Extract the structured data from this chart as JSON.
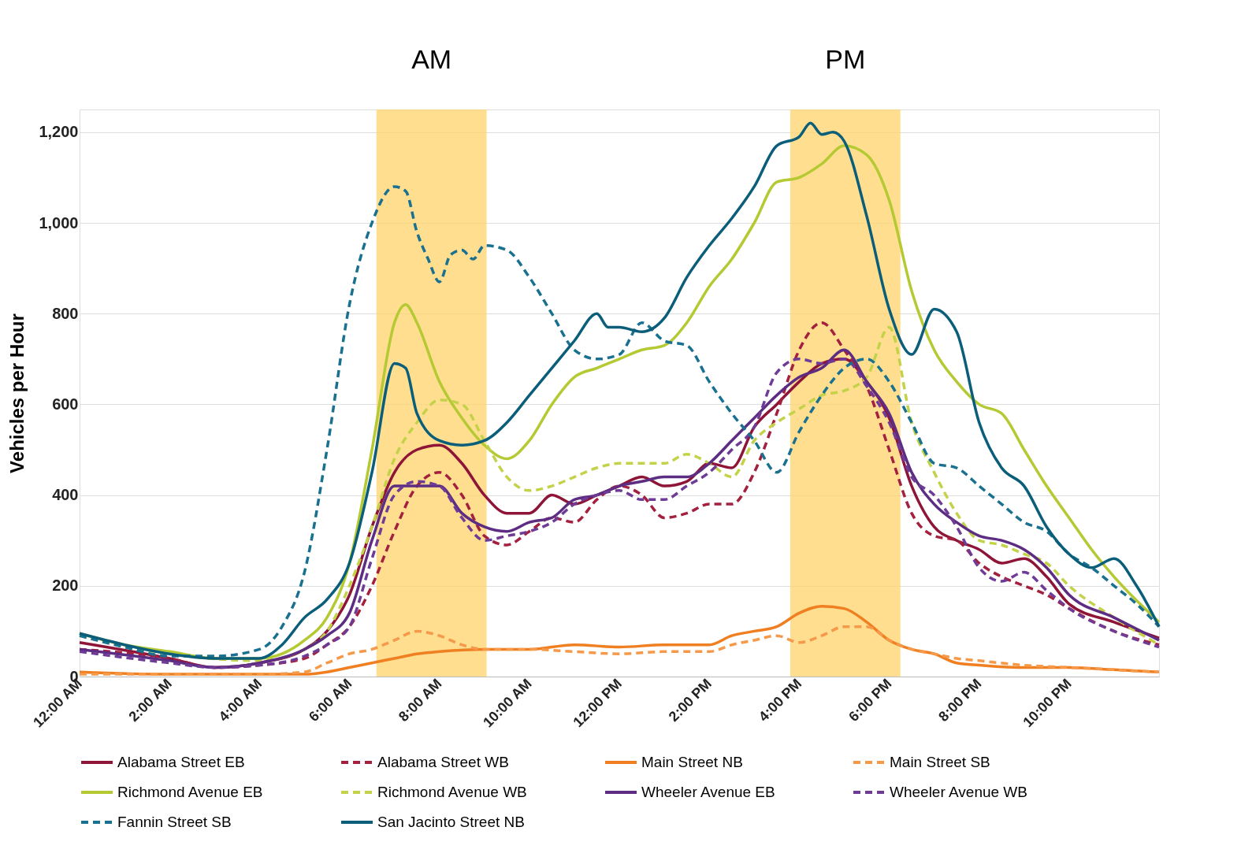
{
  "chart_data": {
    "type": "line",
    "ylabel": "Vehicles per Hour",
    "xlim": [
      0,
      24
    ],
    "ylim": [
      0,
      1250
    ],
    "xticks": [
      {
        "value": 0,
        "label": "12:00 AM"
      },
      {
        "value": 2,
        "label": "2:00 AM"
      },
      {
        "value": 4,
        "label": "4:00 AM"
      },
      {
        "value": 6,
        "label": "6:00 AM"
      },
      {
        "value": 8,
        "label": "8:00 AM"
      },
      {
        "value": 10,
        "label": "10:00 AM"
      },
      {
        "value": 12,
        "label": "12:00 PM"
      },
      {
        "value": 14,
        "label": "2:00 PM"
      },
      {
        "value": 16,
        "label": "4:00 PM"
      },
      {
        "value": 18,
        "label": "6:00 PM"
      },
      {
        "value": 20,
        "label": "8:00 PM"
      },
      {
        "value": 22,
        "label": "10:00 PM"
      }
    ],
    "yticks": [
      0,
      200,
      400,
      600,
      800,
      {
        "value": 1000,
        "label": "1,000"
      },
      {
        "value": 1200,
        "label": "1,200"
      }
    ],
    "grid": "y",
    "legend": "bottom",
    "marker": "none",
    "bands": [
      {
        "axis": "x",
        "from": 6.6,
        "to": 9.05,
        "label": "AM",
        "color": "#ffd36b"
      },
      {
        "axis": "x",
        "from": 15.8,
        "to": 18.25,
        "label": "PM",
        "color": "#ffd36b"
      }
    ],
    "series": [
      {
        "name": "Alabama Street EB",
        "color": "#8e1538",
        "line_style": "solid",
        "x": [
          0,
          2,
          3,
          4,
          5,
          5.5,
          6,
          6.5,
          7,
          7.5,
          8,
          8.5,
          9,
          9.5,
          10,
          10.5,
          11,
          11.5,
          12,
          12.5,
          13,
          13.5,
          14,
          14.5,
          15,
          15.5,
          16,
          16.5,
          17,
          17.5,
          18,
          18.5,
          19,
          19.5,
          20,
          20.5,
          21,
          21.5,
          22,
          23,
          24
        ],
        "values": [
          75,
          40,
          20,
          30,
          60,
          100,
          180,
          330,
          450,
          500,
          510,
          470,
          400,
          360,
          360,
          400,
          380,
          400,
          420,
          440,
          420,
          430,
          470,
          460,
          550,
          600,
          650,
          690,
          700,
          650,
          570,
          420,
          330,
          300,
          280,
          250,
          260,
          220,
          160,
          120,
          85
        ]
      },
      {
        "name": "Alabama Street WB",
        "color": "#a3203f",
        "line_style": "dashed",
        "x": [
          0,
          2,
          3,
          4,
          5,
          5.5,
          6,
          6.5,
          7,
          7.5,
          8,
          8.5,
          9,
          9.5,
          10,
          10.5,
          11,
          11.5,
          12,
          12.5,
          13,
          13.5,
          14,
          14.5,
          15,
          15.5,
          16,
          16.5,
          17,
          17.5,
          18,
          18.5,
          19,
          19.5,
          20,
          20.5,
          21,
          21.5,
          22,
          23,
          24
        ],
        "values": [
          60,
          40,
          20,
          25,
          40,
          70,
          110,
          200,
          320,
          420,
          450,
          400,
          310,
          290,
          320,
          350,
          340,
          390,
          420,
          400,
          350,
          360,
          380,
          380,
          450,
          580,
          720,
          780,
          720,
          640,
          500,
          360,
          310,
          300,
          250,
          220,
          200,
          180,
          150,
          100,
          70
        ]
      },
      {
        "name": "Main Street NB",
        "color": "#f07f22",
        "line_style": "solid",
        "x": [
          0,
          2,
          4,
          5,
          5.5,
          6,
          6.5,
          7,
          7.5,
          8,
          9,
          10,
          11,
          12,
          13,
          14,
          14.5,
          15,
          15.5,
          16,
          16.5,
          17,
          17.5,
          18,
          18.5,
          19,
          19.5,
          20,
          21,
          22,
          23,
          24
        ],
        "values": [
          10,
          5,
          5,
          5,
          10,
          20,
          30,
          40,
          50,
          55,
          60,
          60,
          70,
          65,
          70,
          70,
          90,
          100,
          110,
          140,
          155,
          150,
          120,
          80,
          60,
          50,
          30,
          25,
          20,
          20,
          15,
          10
        ]
      },
      {
        "name": "Main Street SB",
        "color": "#f59a4a",
        "line_style": "dashed",
        "x": [
          0,
          2,
          4,
          5,
          5.5,
          6,
          6.5,
          7,
          7.5,
          8,
          8.5,
          9,
          10,
          11,
          12,
          13,
          14,
          14.5,
          15,
          15.5,
          16,
          16.5,
          17,
          17.5,
          18,
          18.5,
          19,
          19.5,
          20,
          21,
          22,
          23,
          24
        ],
        "values": [
          5,
          5,
          5,
          10,
          30,
          50,
          60,
          80,
          100,
          90,
          70,
          60,
          60,
          55,
          50,
          55,
          55,
          70,
          80,
          90,
          75,
          90,
          110,
          110,
          80,
          60,
          50,
          40,
          35,
          25,
          20,
          15,
          10
        ]
      },
      {
        "name": "Richmond Avenue EB",
        "color": "#b5c933",
        "line_style": "solid",
        "x": [
          0,
          1,
          2,
          3,
          4,
          5,
          5.5,
          6,
          6.5,
          7,
          7.25,
          7.5,
          8,
          8.5,
          9,
          9.5,
          10,
          10.5,
          11,
          11.5,
          12,
          12.5,
          13,
          13.5,
          14,
          14.5,
          15,
          15.5,
          16,
          16.5,
          17,
          17.5,
          18,
          18.5,
          19,
          19.5,
          20,
          20.5,
          21,
          21.5,
          22,
          22.5,
          23,
          24
        ],
        "values": [
          95,
          70,
          55,
          40,
          40,
          80,
          130,
          250,
          500,
          780,
          820,
          780,
          650,
          570,
          510,
          480,
          520,
          600,
          660,
          680,
          700,
          720,
          730,
          780,
          860,
          920,
          1000,
          1090,
          1100,
          1130,
          1170,
          1150,
          1050,
          850,
          720,
          650,
          600,
          580,
          500,
          420,
          350,
          280,
          220,
          120
        ]
      },
      {
        "name": "Richmond Avenue WB",
        "color": "#c4d24a",
        "line_style": "dashed",
        "x": [
          0,
          2,
          4,
          5,
          5.5,
          6,
          6.5,
          7,
          7.5,
          8,
          8.5,
          9,
          9.5,
          10,
          10.5,
          11,
          11.5,
          12,
          12.5,
          13,
          13.5,
          14,
          14.5,
          15,
          15.5,
          16,
          16.5,
          17,
          17.5,
          18,
          18.5,
          19,
          19.5,
          20,
          20.5,
          21,
          21.5,
          22,
          23,
          24
        ],
        "values": [
          90,
          50,
          35,
          60,
          100,
          200,
          330,
          480,
          560,
          610,
          600,
          520,
          440,
          410,
          420,
          440,
          460,
          470,
          470,
          470,
          490,
          470,
          440,
          520,
          560,
          590,
          620,
          630,
          660,
          770,
          560,
          450,
          360,
          300,
          290,
          270,
          250,
          200,
          130,
          70
        ]
      },
      {
        "name": "Wheeler Avenue EB",
        "color": "#5c2d82",
        "line_style": "solid",
        "x": [
          0,
          2,
          3,
          4,
          5,
          5.5,
          6,
          6.5,
          7,
          7.5,
          8,
          8.5,
          9,
          9.5,
          10,
          10.5,
          11,
          11.5,
          12,
          12.5,
          13,
          13.5,
          14,
          14.5,
          15,
          15.5,
          16,
          16.5,
          17,
          17.5,
          18,
          18.5,
          19,
          19.5,
          20,
          20.5,
          21,
          21.5,
          22,
          23,
          24
        ],
        "values": [
          60,
          35,
          20,
          30,
          60,
          90,
          140,
          300,
          420,
          420,
          420,
          360,
          330,
          320,
          340,
          350,
          390,
          400,
          420,
          430,
          440,
          440,
          470,
          520,
          570,
          620,
          660,
          680,
          720,
          650,
          580,
          450,
          380,
          340,
          310,
          300,
          280,
          240,
          180,
          130,
          80
        ]
      },
      {
        "name": "Wheeler Avenue WB",
        "color": "#6e3b96",
        "line_style": "dashed",
        "x": [
          0,
          2,
          3,
          4,
          5,
          5.5,
          6,
          6.5,
          7,
          7.5,
          8,
          8.5,
          9,
          9.5,
          10,
          10.5,
          11,
          11.5,
          12,
          12.5,
          13,
          13.5,
          14,
          14.5,
          15,
          15.5,
          16,
          16.5,
          17,
          17.5,
          18,
          18.5,
          19,
          19.5,
          20,
          20.5,
          21,
          21.5,
          22,
          23,
          24
        ],
        "values": [
          55,
          30,
          20,
          25,
          45,
          70,
          110,
          260,
          400,
          430,
          420,
          350,
          300,
          310,
          320,
          340,
          380,
          400,
          410,
          390,
          390,
          420,
          450,
          500,
          550,
          670,
          700,
          690,
          700,
          640,
          560,
          440,
          400,
          330,
          240,
          210,
          230,
          190,
          150,
          100,
          65
        ]
      },
      {
        "name": "Fannin Street SB",
        "color": "#19718f",
        "line_style": "dashed",
        "x": [
          0,
          1,
          2,
          3,
          4,
          4.5,
          5,
          5.5,
          6,
          6.5,
          7,
          7.25,
          7.5,
          7.75,
          8,
          8.25,
          8.5,
          8.75,
          9,
          9.5,
          10,
          10.5,
          11,
          11.5,
          12,
          12.5,
          13,
          13.5,
          14,
          14.5,
          15,
          15.5,
          16,
          16.5,
          17,
          17.5,
          18,
          18.5,
          19,
          19.5,
          20,
          20.5,
          21,
          21.5,
          22,
          22.5,
          23,
          23.5,
          24
        ],
        "values": [
          90,
          65,
          45,
          45,
          60,
          110,
          230,
          500,
          820,
          1000,
          1080,
          1070,
          980,
          920,
          870,
          930,
          940,
          920,
          950,
          940,
          880,
          800,
          720,
          700,
          710,
          780,
          740,
          730,
          650,
          580,
          520,
          450,
          540,
          620,
          680,
          700,
          650,
          560,
          470,
          460,
          420,
          380,
          340,
          320,
          270,
          240,
          200,
          160,
          110
        ]
      },
      {
        "name": "San Jacinto Street NB",
        "color": "#0b5e7a",
        "line_style": "solid",
        "x": [
          0,
          1,
          2,
          3,
          4,
          4.5,
          5,
          5.5,
          6,
          6.5,
          7,
          7.25,
          7.5,
          8,
          8.5,
          9,
          9.5,
          10,
          10.5,
          11,
          11.5,
          11.75,
          12,
          12.5,
          13,
          13.5,
          14,
          14.5,
          15,
          15.5,
          16,
          16.25,
          16.5,
          16.75,
          17,
          17.5,
          18,
          18.5,
          19,
          19.5,
          20,
          20.5,
          21,
          21.5,
          22,
          22.5,
          23,
          23.5,
          24
        ],
        "values": [
          95,
          70,
          50,
          40,
          40,
          70,
          130,
          170,
          250,
          450,
          690,
          680,
          580,
          520,
          510,
          520,
          560,
          620,
          680,
          740,
          800,
          770,
          770,
          760,
          790,
          880,
          950,
          1010,
          1080,
          1170,
          1190,
          1220,
          1195,
          1200,
          1180,
          1015,
          810,
          710,
          810,
          760,
          560,
          460,
          420,
          330,
          270,
          240,
          260,
          200,
          110
        ]
      }
    ]
  }
}
